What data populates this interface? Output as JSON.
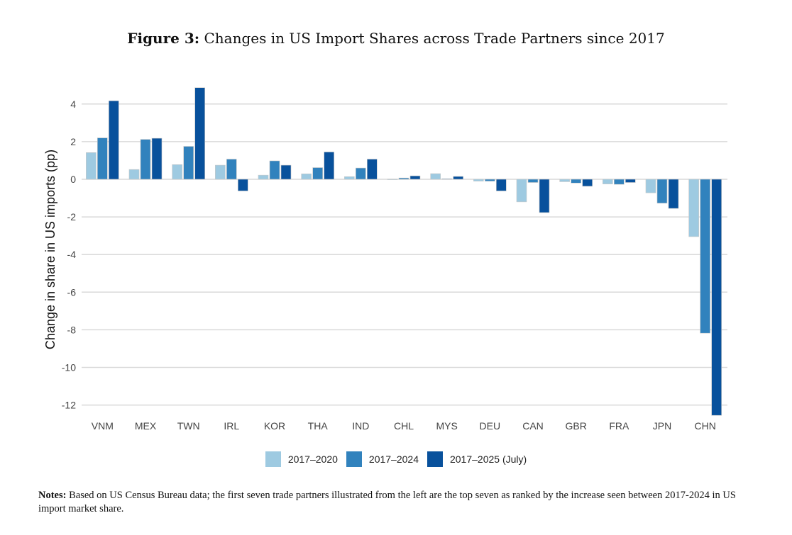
{
  "title_bold": "Figure 3:",
  "title_rest": "Changes in US Import Shares across Trade Partners since 2017",
  "notes_bold": "Notes:",
  "notes_text": "Based on US Census Bureau data; the first seven trade partners illustrated from the left are the top seven as ranked by the increase seen between 2017-2024 in US import market share.",
  "chart_data": {
    "type": "bar",
    "title": "Changes in US Import Shares across Trade Partners since 2017",
    "xlabel": "",
    "ylabel": "Change in share in US imports (pp)",
    "ylim": [
      -12.6,
      5
    ],
    "yticks": [
      4,
      2,
      0,
      -2,
      -4,
      -6,
      -8,
      -10,
      -12
    ],
    "grid": true,
    "legend_position": "bottom",
    "categories": [
      "VNM",
      "MEX",
      "TWN",
      "IRL",
      "KOR",
      "THA",
      "IND",
      "CHL",
      "MYS",
      "DEU",
      "CAN",
      "GBR",
      "FRA",
      "JPN",
      "CHN"
    ],
    "series": [
      {
        "name": "2017–2020",
        "color": "#9ecae1",
        "values": [
          1.42,
          0.52,
          0.78,
          0.75,
          0.22,
          0.29,
          0.14,
          0.01,
          0.3,
          -0.1,
          -1.2,
          -0.13,
          -0.25,
          -0.72,
          -3.05
        ]
      },
      {
        "name": "2017–2024",
        "color": "#3182bd",
        "values": [
          2.2,
          2.12,
          1.75,
          1.07,
          0.98,
          0.62,
          0.6,
          0.07,
          0.03,
          -0.1,
          -0.17,
          -0.2,
          -0.27,
          -1.27,
          -8.18
        ]
      },
      {
        "name": "2017–2025 (July)",
        "color": "#08519c",
        "values": [
          4.17,
          2.18,
          4.87,
          -0.62,
          0.75,
          1.45,
          1.07,
          0.18,
          0.15,
          -0.62,
          -1.77,
          -0.37,
          -0.17,
          -1.55,
          -12.55
        ]
      }
    ]
  }
}
